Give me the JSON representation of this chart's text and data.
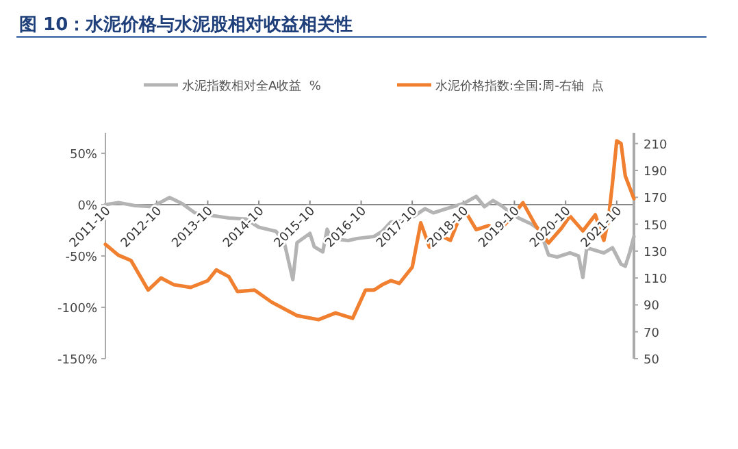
{
  "chart_data": {
    "type": "line",
    "title": "图 10：水泥价格与水泥股相对收益相关性",
    "xlim": [
      "2011-10",
      "2022-02"
    ],
    "xticks": [
      "2011-10",
      "2012-10",
      "2013-10",
      "2014-10",
      "2015-10",
      "2016-10",
      "2017-10",
      "2018-10",
      "2019-10",
      "2020-10",
      "2021-10"
    ],
    "ylim": [
      -150,
      70
    ],
    "yticks": [
      {
        "value": -150,
        "label": "-150%"
      },
      {
        "value": -100,
        "label": "-100%"
      },
      {
        "value": -50,
        "label": "-50%"
      },
      {
        "value": 0,
        "label": "0%"
      },
      {
        "value": 50,
        "label": "50%"
      }
    ],
    "y2lim": [
      50,
      218
    ],
    "y2ticks": [
      50,
      70,
      90,
      110,
      130,
      150,
      170,
      190,
      210
    ],
    "legend": "top",
    "grid": false,
    "line_style": "solid",
    "marker": "none",
    "series": [
      {
        "name": "水泥指数相对全A收益  %",
        "color": "#b4b4b4",
        "axis": "y",
        "x": [
          "2011-10",
          "2012-01",
          "2012-05",
          "2012-09",
          "2013-01",
          "2013-04",
          "2013-07",
          "2013-10",
          "2014-03",
          "2014-07",
          "2014-10",
          "2015-02",
          "2015-04",
          "2015-06",
          "2015-07",
          "2015-10",
          "2015-11",
          "2016-01",
          "2016-02",
          "2016-03",
          "2016-07",
          "2016-09",
          "2017-01",
          "2017-03",
          "2017-05",
          "2017-09",
          "2018-01",
          "2018-03",
          "2018-06",
          "2018-10",
          "2019-01",
          "2019-03",
          "2019-05",
          "2019-07",
          "2019-10",
          "2020-02",
          "2020-04",
          "2020-06",
          "2020-08",
          "2020-11",
          "2021-01",
          "2021-02",
          "2021-03",
          "2021-07",
          "2021-09",
          "2021-11",
          "2021-12",
          "2022-01",
          "2022-02"
        ],
        "values": [
          0,
          2,
          -1,
          -2,
          7,
          1,
          -8,
          -10,
          -13,
          -14,
          -22,
          -26,
          -37,
          -73,
          -37,
          -28,
          -41,
          -46,
          -24,
          -33,
          -35,
          -33,
          -31,
          -26,
          -17,
          -15,
          -4,
          -8,
          -4,
          1,
          8,
          -2,
          4,
          -1,
          -11,
          -19,
          -25,
          -49,
          -51,
          -47,
          -50,
          -71,
          -42,
          -47,
          -42,
          -58,
          -60,
          -47,
          -31
        ]
      },
      {
        "name": "水泥价格指数:全国:周-右轴  点",
        "color": "#f07f2f",
        "axis": "y2",
        "x": [
          "2011-10",
          "2012-01",
          "2012-04",
          "2012-08",
          "2012-11",
          "2013-02",
          "2013-06",
          "2013-10",
          "2013-12",
          "2014-03",
          "2014-05",
          "2014-09",
          "2015-01",
          "2015-07",
          "2015-12",
          "2016-04",
          "2016-08",
          "2016-11",
          "2017-01",
          "2017-03",
          "2017-05",
          "2017-07",
          "2017-10",
          "2017-12",
          "2018-02",
          "2018-05",
          "2018-07",
          "2018-10",
          "2019-01",
          "2019-04",
          "2019-06",
          "2019-09",
          "2019-12",
          "2020-03",
          "2020-06",
          "2020-09",
          "2020-11",
          "2021-02",
          "2021-05",
          "2021-07",
          "2021-08",
          "2021-09",
          "2021-10",
          "2021-11",
          "2021-12",
          "2022-02"
        ],
        "values": [
          135,
          127,
          123,
          101,
          110,
          105,
          103,
          108,
          116,
          111,
          100,
          101,
          92,
          82,
          79,
          84,
          80,
          101,
          101,
          105,
          108,
          106,
          118,
          151,
          133,
          141,
          138,
          162,
          146,
          149,
          144,
          154,
          166,
          149,
          136,
          147,
          156,
          145,
          157,
          138,
          152,
          181,
          212,
          210,
          186,
          169
        ]
      }
    ]
  }
}
